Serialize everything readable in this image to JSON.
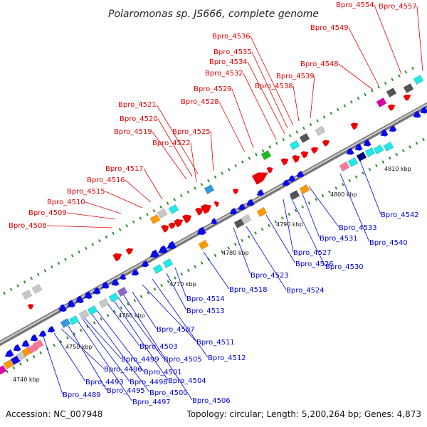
{
  "title": "Polaromonas sp. JS666, complete genome",
  "footer": {
    "accession": "Accession: NC_007948",
    "topology": "Topology: circular; Length: 5,200,264 bp; Genes: 4,873"
  },
  "axis_labels": [
    "4740 kbp",
    "4750 kbp",
    "4760 kbp",
    "4770 kbp",
    "4780 kbp",
    "4790 kbp",
    "4800 kbp",
    "4810 kbp"
  ],
  "labels_forward": [
    "Bpro_4508",
    "Bpro_4509",
    "Bpro_4510",
    "Bpro_4515",
    "Bpro_4516",
    "Bpro_4517",
    "Bpro_4519",
    "Bpro_4520",
    "Bpro_4521",
    "Bpro_4522",
    "Bpro_4525",
    "Bpro_4528",
    "Bpro_4529",
    "Bpro_4532",
    "Bpro_4534",
    "Bpro_4535",
    "Bpro_4536",
    "Bpro_4538",
    "Bpro_4539",
    "Bpro_4548",
    "Bpro_4549",
    "Bpro_4554",
    "Bpro_4557"
  ],
  "labels_reverse": [
    "Bpro_4489",
    "Bpro_4493",
    "Bpro_4495",
    "Bpro_4496",
    "Bpro_4497",
    "Bpro_4498",
    "Bpro_4499",
    "Bpro_4500",
    "Bpro_4501",
    "Bpro_4503",
    "Bpro_4504",
    "Bpro_4505",
    "Bpro_4506",
    "Bpro_4507",
    "Bpro_4511",
    "Bpro_4512",
    "Bpro_4513",
    "Bpro_4514",
    "Bpro_4518",
    "Bpro_4523",
    "Bpro_4524",
    "Bpro_4526",
    "Bpro_4527",
    "Bpro_4530",
    "Bpro_4531",
    "Bpro_4533",
    "Bpro_4540",
    "Bpro_4542"
  ],
  "colors": {
    "forward_label": "#e00000",
    "reverse_label": "#0000dd",
    "backbone": "#9a9a9a",
    "cog_tick": "#2e8b2e"
  }
}
